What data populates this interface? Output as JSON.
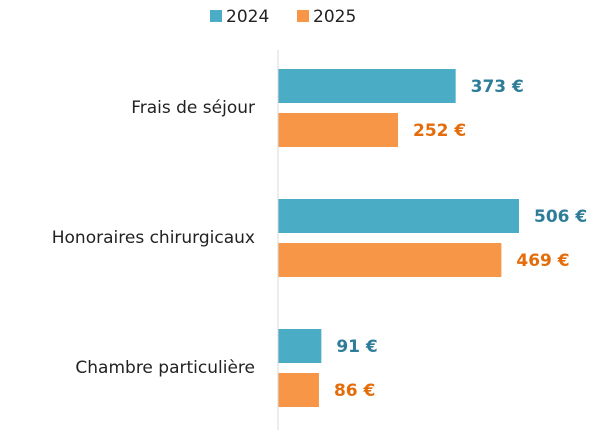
{
  "chart_data": {
    "type": "hbar",
    "categories": [
      "Frais de séjour",
      "Honoraires chirurgicaux",
      "Chambre particulière"
    ],
    "series": [
      {
        "name": "2024",
        "color": "#4bacc6",
        "label_color": "#2e7d98",
        "values": [
          373,
          506,
          91
        ],
        "value_labels": [
          "373 €",
          "506 €",
          "91 €"
        ]
      },
      {
        "name": "2025",
        "color": "#f79646",
        "label_color": "#e46c0a",
        "values": [
          252,
          469,
          86
        ],
        "value_labels": [
          "252 €",
          "469 €",
          "86 €"
        ]
      }
    ],
    "legend": "top"
  }
}
